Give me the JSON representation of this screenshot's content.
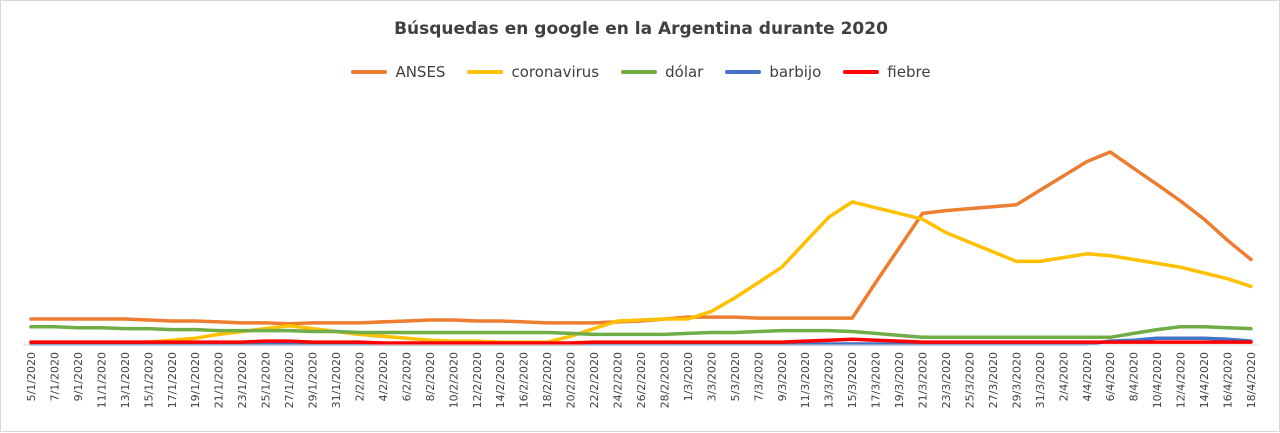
{
  "chart_data": {
    "type": "line",
    "title": "Búsquedas en google en la Argentina durante 2020",
    "xlabel": "",
    "ylabel": "",
    "ylim": [
      0,
      100
    ],
    "grid": false,
    "legend_position": "top",
    "categories": [
      "5/1/2020",
      "7/1/2020",
      "9/1/2020",
      "11/1/2020",
      "13/1/2020",
      "15/1/2020",
      "17/1/2020",
      "19/1/2020",
      "21/1/2020",
      "23/1/2020",
      "25/1/2020",
      "27/1/2020",
      "29/1/2020",
      "31/1/2020",
      "2/2/2020",
      "4/2/2020",
      "6/2/2020",
      "8/2/2020",
      "10/2/2020",
      "12/2/2020",
      "14/2/2020",
      "16/2/2020",
      "18/2/2020",
      "20/2/2020",
      "22/2/2020",
      "24/2/2020",
      "26/2/2020",
      "28/2/2020",
      "1/3/2020",
      "3/3/2020",
      "5/3/2020",
      "7/3/2020",
      "9/3/2020",
      "11/3/2020",
      "13/3/2020",
      "15/3/2020",
      "17/3/2020",
      "19/3/2020",
      "21/3/2020",
      "23/3/2020",
      "25/3/2020",
      "27/3/2020",
      "29/3/2020",
      "31/3/2020",
      "2/4/2020",
      "4/4/2020",
      "6/4/2020",
      "8/4/2020",
      "10/4/2020",
      "12/4/2020",
      "14/4/2020",
      "16/4/2020",
      "18/4/2020"
    ],
    "series": [
      {
        "name": "ANSES",
        "color": "#ed7d31",
        "values": [
          13,
          13,
          13,
          13,
          13,
          12.5,
          12,
          12,
          11.5,
          11,
          11,
          10.5,
          11,
          11,
          11,
          11.5,
          12,
          12.5,
          12.5,
          12,
          12,
          11.5,
          11,
          11,
          11,
          11.5,
          12,
          13,
          14,
          14,
          14,
          13.5,
          13.5,
          13.5,
          13.5,
          13.5,
          32,
          50,
          68,
          69.5,
          70.5,
          71.5,
          72.5,
          80,
          87.5,
          95,
          100,
          91.5,
          83,
          74.5,
          65,
          54,
          44
        ]
      },
      {
        "name": "coronavirus",
        "color": "#ffc000",
        "values": [
          1,
          1,
          1,
          1,
          1,
          1,
          2,
          3,
          5,
          6.5,
          8,
          9.5,
          8,
          6.5,
          5,
          4,
          3,
          2,
          1.5,
          1.5,
          1,
          1,
          1,
          4,
          8,
          12,
          12.5,
          13,
          13,
          17,
          24,
          32,
          40,
          53,
          66,
          74,
          71,
          68,
          65,
          58,
          53,
          48,
          43,
          43,
          45,
          47,
          46,
          44,
          42,
          40,
          37,
          34,
          30
        ]
      },
      {
        "name": "dólar",
        "color": "#70ad47",
        "values": [
          9,
          9,
          8.5,
          8.5,
          8,
          8,
          7.5,
          7.5,
          7,
          7,
          7,
          7,
          6.5,
          6.5,
          6,
          6,
          6,
          6,
          6,
          6,
          6,
          6,
          6,
          5.5,
          5,
          5,
          5,
          5,
          5.5,
          6,
          6,
          6.5,
          7,
          7,
          7,
          6.5,
          5.5,
          4.5,
          3.5,
          3.5,
          3.5,
          3.5,
          3.5,
          3.5,
          3.5,
          3.5,
          3.5,
          5.5,
          7.5,
          9,
          9,
          8.5,
          8
        ]
      },
      {
        "name": "barbijo",
        "color": "#4472c4",
        "values": [
          0,
          0,
          0,
          0,
          0,
          0,
          0,
          0,
          0,
          0,
          0,
          0,
          0,
          0,
          0,
          0,
          0,
          0,
          0,
          0,
          0,
          0,
          0,
          0,
          0,
          0,
          0,
          0,
          0,
          0,
          0,
          0,
          0,
          0,
          0,
          0,
          0,
          0,
          0,
          0,
          0,
          0,
          0,
          0,
          0,
          0,
          1.5,
          2,
          3,
          3,
          3,
          2.5,
          1.5
        ]
      },
      {
        "name": "fiebre",
        "color": "#ff0000",
        "values": [
          1,
          1,
          1,
          1,
          1,
          1,
          1,
          1,
          1,
          1,
          1.5,
          1.5,
          1,
          1,
          1,
          0.5,
          0.5,
          0.5,
          0.5,
          0.5,
          0.5,
          0.5,
          0.5,
          0.5,
          1,
          1,
          1,
          1,
          1,
          1,
          1,
          1,
          1,
          1.5,
          2,
          2.5,
          2,
          1.5,
          1,
          1,
          1,
          1,
          1,
          1,
          1,
          1,
          1,
          1,
          1,
          1,
          1,
          1,
          1
        ]
      }
    ]
  }
}
